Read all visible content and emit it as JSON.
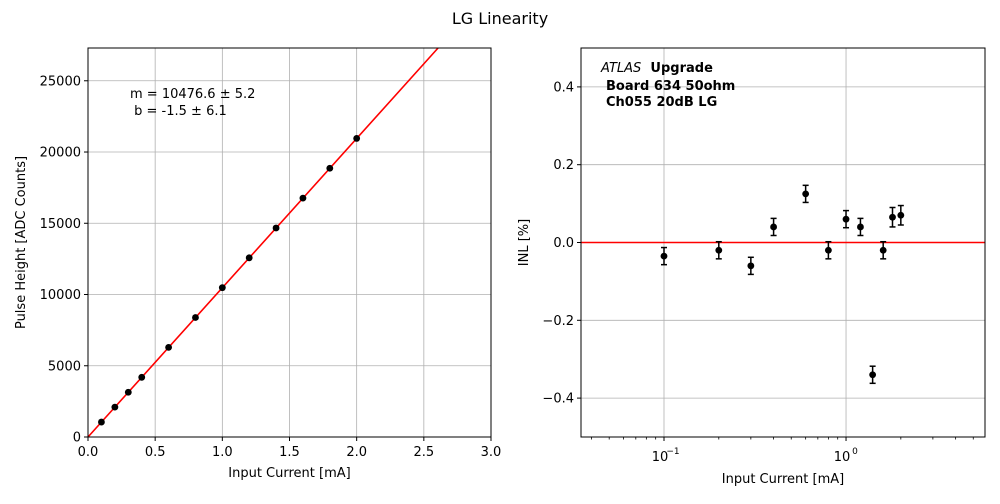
{
  "figure": {
    "title": "LG Linearity"
  },
  "chart_data": [
    {
      "type": "scatter",
      "title": "",
      "xlabel": "Input Current [mA]",
      "ylabel": "Pulse Height [ADC Counts]",
      "xlim": [
        0,
        3.0
      ],
      "ylim": [
        0,
        27300
      ],
      "xscale": "linear",
      "grid": true,
      "xticks": [
        0.0,
        0.5,
        1.0,
        1.5,
        2.0,
        2.5,
        3.0
      ],
      "xtick_labels": [
        "0.0",
        "0.5",
        "1.0",
        "1.5",
        "2.0",
        "2.5",
        "3.0"
      ],
      "yticks": [
        0,
        5000,
        10000,
        15000,
        20000,
        25000
      ],
      "ytick_labels": [
        "0",
        "5000",
        "10000",
        "15000",
        "20000",
        "25000"
      ],
      "series": [
        {
          "x": [
            0.1,
            0.2,
            0.3,
            0.4,
            0.6,
            0.8,
            1.0,
            1.2,
            1.4,
            1.6,
            1.8,
            2.0
          ],
          "y": [
            1050,
            2095,
            3140,
            4190,
            6290,
            8385,
            10480,
            12575,
            14670,
            16765,
            18860,
            20955
          ],
          "color": "#000000"
        }
      ],
      "fit": {
        "slope": 10476.6,
        "intercept": -1.5,
        "color": "#ff0000"
      },
      "annotation": {
        "lines": [
          "m = 10476.6 ± 5.2",
          " b = -1.5 ± 6.1"
        ]
      }
    },
    {
      "type": "scatter",
      "title": "",
      "xlabel": "Input Current [mA]",
      "ylabel": "INL [%]",
      "xscale": "log",
      "xlim": [
        0.035,
        5.8
      ],
      "ylim": [
        -0.5,
        0.5
      ],
      "grid": true,
      "xticks": [
        0.1,
        1
      ],
      "xtick_labels": [
        "10",
        "10"
      ],
      "xtick_exponents": [
        "−1",
        "0"
      ],
      "yticks": [
        -0.4,
        -0.2,
        0.0,
        0.2,
        0.4
      ],
      "ytick_labels": [
        "−0.4",
        "−0.2",
        "0.0",
        "0.2",
        "0.4"
      ],
      "series": [
        {
          "x": [
            0.1,
            0.2,
            0.3,
            0.4,
            0.6,
            0.8,
            1.0,
            1.2,
            1.4,
            1.6,
            1.8,
            2.0
          ],
          "y": [
            -0.035,
            -0.02,
            -0.06,
            0.04,
            0.125,
            -0.02,
            0.06,
            0.04,
            -0.34,
            -0.02,
            0.065,
            0.07
          ],
          "yerr": [
            0.022,
            0.022,
            0.022,
            0.022,
            0.022,
            0.022,
            0.022,
            0.022,
            0.022,
            0.022,
            0.025,
            0.025
          ],
          "color": "#000000"
        }
      ],
      "reference_line": {
        "y": 0.0,
        "color": "#ff0000"
      },
      "annotation": {
        "italic": "ATLAS",
        "bold": "Upgrade",
        "lines": [
          "Board 634 50ohm",
          "Ch055 20dB LG"
        ]
      }
    }
  ]
}
